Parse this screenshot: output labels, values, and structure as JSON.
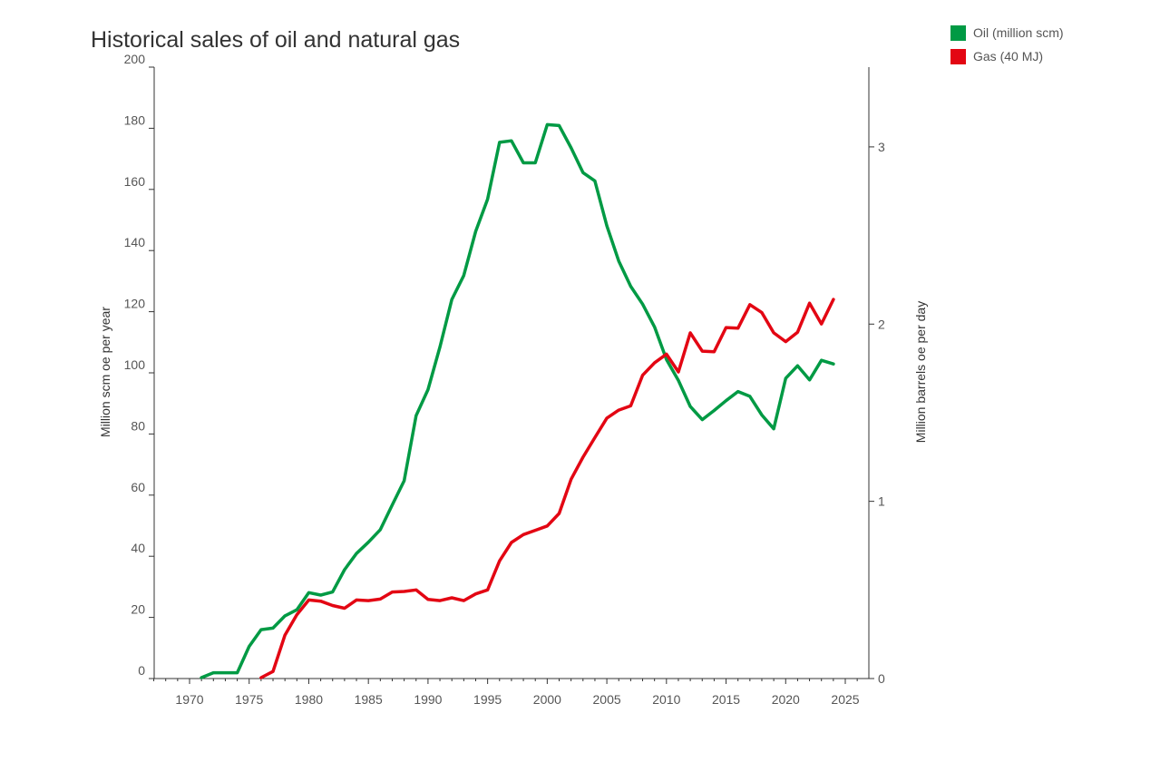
{
  "title": "Historical sales of oil and natural gas",
  "chart_data": {
    "type": "line",
    "title": "Historical sales of oil and natural gas",
    "xlabel": "",
    "ylabel": "Million scm oe per year",
    "y2label": "Million barrels oe per day",
    "xlim": [
      1967,
      2026
    ],
    "ylim": [
      0,
      200
    ],
    "y2lim": [
      0,
      3.45
    ],
    "x_ticks": [
      1970,
      1975,
      1980,
      1985,
      1990,
      1995,
      2000,
      2005,
      2010,
      2015,
      2020,
      2025
    ],
    "y_ticks": [
      0,
      20,
      40,
      60,
      80,
      100,
      120,
      140,
      160,
      180,
      200
    ],
    "y2_ticks": [
      0,
      1,
      2,
      3
    ],
    "grid": false,
    "legend_position": "top-right",
    "series": [
      {
        "name": "Oil (million scm)",
        "color": "#009a44",
        "x": [
          1971,
          1972,
          1973,
          1974,
          1975,
          1976,
          1977,
          1978,
          1979,
          1980,
          1981,
          1982,
          1983,
          1984,
          1985,
          1986,
          1987,
          1988,
          1989,
          1990,
          1991,
          1992,
          1993,
          1994,
          1995,
          1996,
          1997,
          1998,
          1999,
          2000,
          2001,
          2002,
          2003,
          2004,
          2005,
          2006,
          2007,
          2008,
          2009,
          2010,
          2011,
          2012,
          2013,
          2014,
          2015,
          2016,
          2017,
          2018,
          2019,
          2020,
          2021,
          2022,
          2023,
          2024
        ],
        "values": [
          0.3,
          1.9,
          1.9,
          1.9,
          10.5,
          16.0,
          16.5,
          20.5,
          22.5,
          28.1,
          27.3,
          28.3,
          35.6,
          40.9,
          44.6,
          48.7,
          56.8,
          64.7,
          86.0,
          94.5,
          108.5,
          124.0,
          131.8,
          146.3,
          156.8,
          175.4,
          175.9,
          168.7,
          168.7,
          181.2,
          180.9,
          173.6,
          165.5,
          162.8,
          148.1,
          136.6,
          128.3,
          122.5,
          115.0,
          104.4,
          97.5,
          89.0,
          84.7,
          87.7,
          90.9,
          93.9,
          92.3,
          86.2,
          81.7,
          98.2,
          102.3,
          97.7,
          104.1,
          102.9
        ]
      },
      {
        "name": "Gas (40 MJ)",
        "color": "#e30613",
        "x": [
          1976,
          1977,
          1978,
          1979,
          1980,
          1981,
          1982,
          1983,
          1984,
          1985,
          1986,
          1987,
          1988,
          1989,
          1990,
          1991,
          1992,
          1993,
          1994,
          1995,
          1996,
          1997,
          1998,
          1999,
          2000,
          2001,
          2002,
          2003,
          2004,
          2005,
          2006,
          2007,
          2008,
          2009,
          2010,
          2011,
          2012,
          2013,
          2014,
          2015,
          2016,
          2017,
          2018,
          2019,
          2020,
          2021,
          2022,
          2023,
          2024
        ],
        "values": [
          0.3,
          2.3,
          14.2,
          20.9,
          25.7,
          25.3,
          23.9,
          23.0,
          25.7,
          25.5,
          26.0,
          28.3,
          28.5,
          29.0,
          25.9,
          25.5,
          26.4,
          25.5,
          27.7,
          29.0,
          38.5,
          44.5,
          47.1,
          48.5,
          49.9,
          54.0,
          65.2,
          72.4,
          78.8,
          85.2,
          87.8,
          89.2,
          99.2,
          103.3,
          106.1,
          100.3,
          113.1,
          107.1,
          106.9,
          114.8,
          114.6,
          122.3,
          119.7,
          113.1,
          110.2,
          113.3,
          122.8,
          116.0,
          124.0
        ]
      }
    ]
  }
}
